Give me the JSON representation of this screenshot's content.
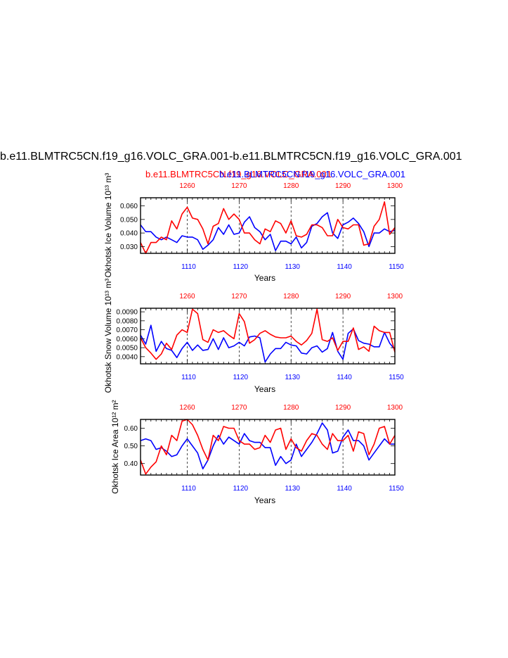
{
  "title": "b.e11.BLMTRC5CN.f19_g16.VOLC_GRA.001-b.e11.BLMTRC5CN.f19_g16.VOLC_GRA.001",
  "legend": {
    "red": "b.e11.BLMTRC5CN.f19_g16.VOLC_GRA.001",
    "blue": "b.e11.BLMTRC5CN.f19_g16.VOLC_GRA.001"
  },
  "chart_data": [
    {
      "type": "line",
      "ylabel": "Okhotsk Ice Volume 10^13 m^3",
      "xlabel": "Years",
      "ylim": [
        0.025,
        0.066
      ],
      "yticks": [
        "0.060",
        "0.050",
        "0.040",
        "0.030"
      ],
      "ytick_values": [
        0.06,
        0.05,
        0.04,
        0.03
      ],
      "bottom_axis": {
        "range": [
          1101,
          1150
        ],
        "ticks": [
          "1110",
          "1120",
          "1130",
          "1140",
          "1150"
        ]
      },
      "top_axis": {
        "range": [
          1251,
          1300
        ],
        "ticks": [
          "1260",
          "1270",
          "1280",
          "1290",
          "1300"
        ]
      },
      "series": [
        {
          "color": "#0000ff",
          "values": [
            0.046,
            0.041,
            0.041,
            0.037,
            0.035,
            0.037,
            0.035,
            0.033,
            0.038,
            0.037,
            0.037,
            0.035,
            0.028,
            0.031,
            0.035,
            0.044,
            0.039,
            0.046,
            0.039,
            0.04,
            0.048,
            0.052,
            0.044,
            0.041,
            0.035,
            0.039,
            0.027,
            0.034,
            0.034,
            0.032,
            0.037,
            0.029,
            0.033,
            0.045,
            0.047,
            0.052,
            0.055,
            0.04,
            0.036,
            0.046,
            0.048,
            0.051,
            0.047,
            0.041,
            0.03,
            0.04,
            0.04,
            0.043,
            0.041,
            0.042
          ]
        },
        {
          "color": "#ff0000",
          "values": [
            0.033,
            0.025,
            0.033,
            0.033,
            0.037,
            0.035,
            0.049,
            0.043,
            0.054,
            0.059,
            0.051,
            0.05,
            0.043,
            0.032,
            0.045,
            0.047,
            0.058,
            0.05,
            0.054,
            0.05,
            0.04,
            0.04,
            0.035,
            0.032,
            0.043,
            0.041,
            0.049,
            0.047,
            0.04,
            0.049,
            0.038,
            0.037,
            0.039,
            0.046,
            0.046,
            0.044,
            0.038,
            0.038,
            0.05,
            0.044,
            0.043,
            0.046,
            0.046,
            0.031,
            0.032,
            0.045,
            0.05,
            0.063,
            0.039,
            0.044
          ]
        }
      ]
    },
    {
      "type": "line",
      "ylabel": "Okhotsk Snow Volume 10^13 m^3",
      "xlabel": "Years",
      "ylim": [
        0.0032,
        0.0094
      ],
      "yticks": [
        "0.0090",
        "0.0080",
        "0.0070",
        "0.0060",
        "0.0050",
        "0.0040"
      ],
      "ytick_values": [
        0.009,
        0.008,
        0.007,
        0.006,
        0.005,
        0.004
      ],
      "bottom_axis": {
        "range": [
          1101,
          1150
        ],
        "ticks": [
          "1110",
          "1120",
          "1130",
          "1140",
          "1150"
        ]
      },
      "top_axis": {
        "range": [
          1251,
          1300
        ],
        "ticks": [
          "1260",
          "1270",
          "1280",
          "1290",
          "1300"
        ]
      },
      "series": [
        {
          "color": "#0000ff",
          "values": [
            0.0064,
            0.0054,
            0.0075,
            0.0046,
            0.0057,
            0.0049,
            0.0047,
            0.0039,
            0.0049,
            0.0056,
            0.0047,
            0.0053,
            0.0047,
            0.0048,
            0.006,
            0.0048,
            0.0061,
            0.005,
            0.0052,
            0.0056,
            0.0052,
            0.0062,
            0.0063,
            0.0061,
            0.0034,
            0.0043,
            0.0049,
            0.0049,
            0.0056,
            0.0053,
            0.0052,
            0.0044,
            0.0043,
            0.005,
            0.0052,
            0.0045,
            0.0049,
            0.0067,
            0.0046,
            0.0037,
            0.0066,
            0.0071,
            0.0058,
            0.0055,
            0.0054,
            0.0051,
            0.0051,
            0.0067,
            0.0055,
            0.0048
          ]
        },
        {
          "color": "#ff0000",
          "values": [
            0.0061,
            0.005,
            0.0044,
            0.0037,
            0.0043,
            0.0055,
            0.0048,
            0.0064,
            0.007,
            0.0067,
            0.0093,
            0.0088,
            0.0059,
            0.0056,
            0.007,
            0.0067,
            0.0069,
            0.0064,
            0.006,
            0.0088,
            0.0079,
            0.0055,
            0.0059,
            0.0066,
            0.0069,
            0.0065,
            0.0062,
            0.0061,
            0.0061,
            0.0063,
            0.0057,
            0.0053,
            0.0058,
            0.0066,
            0.0093,
            0.0059,
            0.0057,
            0.0061,
            0.0047,
            0.0057,
            0.0057,
            0.0072,
            0.0048,
            0.0051,
            0.0046,
            0.0074,
            0.0069,
            0.0067,
            0.0067,
            0.0045
          ]
        }
      ]
    },
    {
      "type": "line",
      "ylabel": "Okhotsk Ice Area 10^12 m^2",
      "xlabel": "Years",
      "ylim": [
        0.335,
        0.65
      ],
      "yticks": [
        "0.60",
        "0.50",
        "0.40"
      ],
      "ytick_values": [
        0.6,
        0.5,
        0.4
      ],
      "bottom_axis": {
        "range": [
          1101,
          1150
        ],
        "ticks": [
          "1110",
          "1120",
          "1130",
          "1140",
          "1150"
        ]
      },
      "top_axis": {
        "range": [
          1251,
          1300
        ],
        "ticks": [
          "1260",
          "1270",
          "1280",
          "1290",
          "1300"
        ]
      },
      "series": [
        {
          "color": "#0000ff",
          "values": [
            0.53,
            0.54,
            0.53,
            0.48,
            0.49,
            0.47,
            0.44,
            0.45,
            0.5,
            0.54,
            0.5,
            0.46,
            0.37,
            0.42,
            0.5,
            0.56,
            0.51,
            0.55,
            0.53,
            0.51,
            0.57,
            0.53,
            0.52,
            0.52,
            0.49,
            0.49,
            0.39,
            0.44,
            0.4,
            0.42,
            0.51,
            0.44,
            0.48,
            0.52,
            0.57,
            0.63,
            0.59,
            0.46,
            0.47,
            0.55,
            0.59,
            0.53,
            0.53,
            0.5,
            0.42,
            0.46,
            0.5,
            0.54,
            0.51,
            0.51
          ]
        },
        {
          "color": "#ff0000",
          "values": [
            0.42,
            0.34,
            0.38,
            0.41,
            0.5,
            0.45,
            0.56,
            0.53,
            0.64,
            0.65,
            0.62,
            0.56,
            0.48,
            0.42,
            0.56,
            0.53,
            0.61,
            0.6,
            0.6,
            0.53,
            0.51,
            0.51,
            0.48,
            0.49,
            0.56,
            0.52,
            0.59,
            0.6,
            0.48,
            0.54,
            0.49,
            0.47,
            0.53,
            0.57,
            0.56,
            0.51,
            0.48,
            0.57,
            0.53,
            0.53,
            0.56,
            0.47,
            0.58,
            0.57,
            0.45,
            0.51,
            0.6,
            0.61,
            0.51,
            0.56
          ]
        }
      ]
    }
  ]
}
